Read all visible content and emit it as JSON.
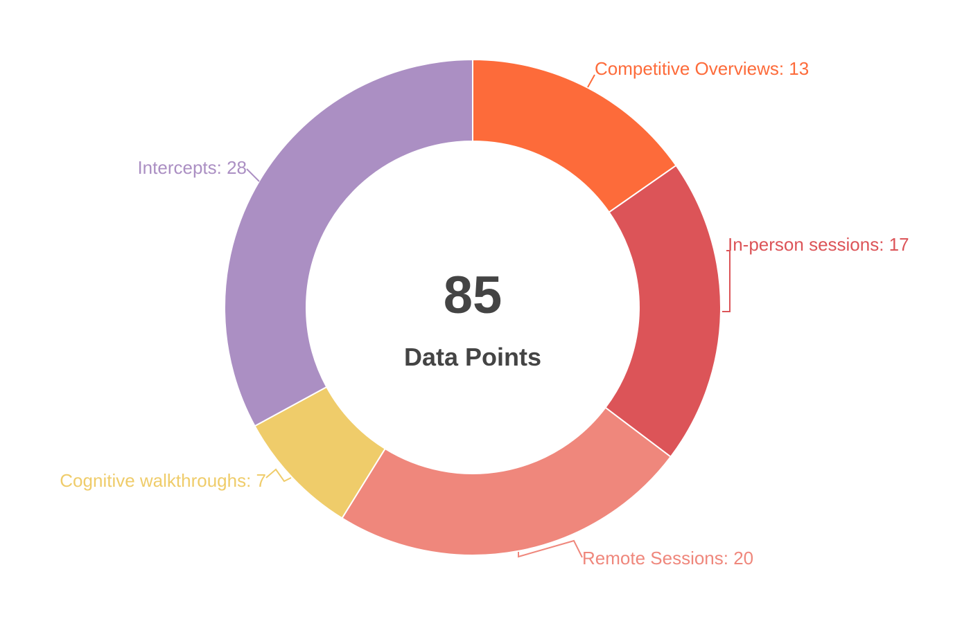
{
  "chart_data": {
    "type": "pie",
    "variant": "donut",
    "center": {
      "value": "85",
      "caption": "Data Points"
    },
    "slices": [
      {
        "label": "Competitive Overviews",
        "value": 13,
        "display": "Competitive Overviews: 13",
        "color": "#FD6B3A"
      },
      {
        "label": "In-person sessions",
        "value": 17,
        "display": "In-person sessions: 17",
        "color": "#DC5458"
      },
      {
        "label": "Remote Sessions",
        "value": 20,
        "display": "Remote Sessions: 20",
        "color": "#EF877C"
      },
      {
        "label": "Cognitive walkthroughs",
        "value": 7,
        "display": "Cognitive walkthroughs: 7",
        "color": "#EFCC6A"
      },
      {
        "label": "Intercepts",
        "value": 28,
        "display": "Intercepts: 28",
        "color": "#AB8FC3"
      }
    ],
    "start_angle": "12 o'clock",
    "direction": "clockwise",
    "legend": "none (labels beside slices)"
  }
}
